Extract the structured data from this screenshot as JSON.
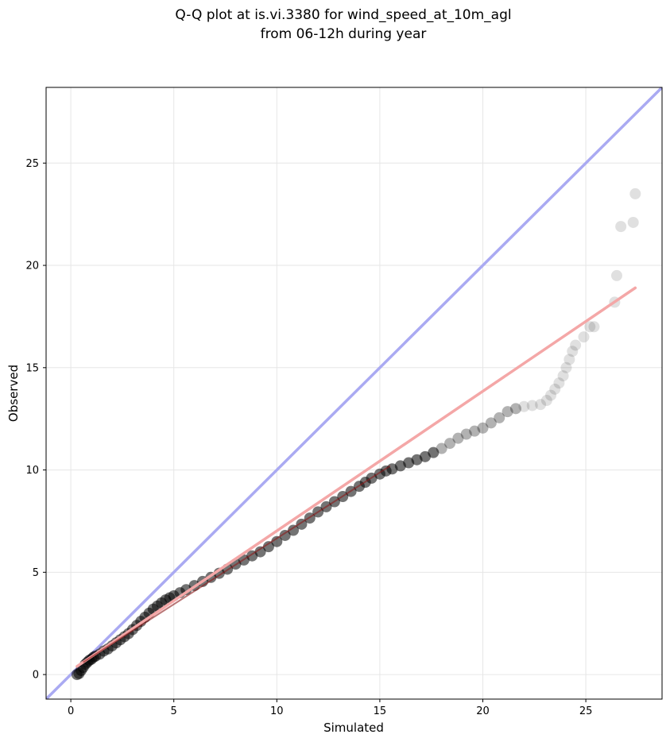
{
  "chart_data": {
    "type": "scatter",
    "title": [
      "Q-Q plot at is.vi.3380 for wind_speed_at_10m_agl",
      "from 06-12h during year"
    ],
    "xlabel": "Simulated",
    "ylabel": "Observed",
    "xlim": [
      -1.2,
      28.7
    ],
    "ylim": [
      -1.2,
      28.7
    ],
    "xticks": [
      0,
      5,
      10,
      15,
      20,
      25
    ],
    "yticks": [
      0,
      5,
      10,
      15,
      20,
      25
    ],
    "grid": true,
    "colors": {
      "identity_line": "#aaaaf2",
      "fit_line": "#f4a7a7",
      "points": "#000000",
      "grid": "#e6e6e6"
    },
    "reference_line": {
      "name": "1:1",
      "points": [
        [
          -1.2,
          -1.2
        ],
        [
          28.7,
          28.7
        ]
      ]
    },
    "fit_line": {
      "points": [
        [
          0.3,
          0.4
        ],
        [
          27.4,
          18.9
        ]
      ]
    },
    "points": [
      [
        0.3,
        0.0
      ],
      [
        0.4,
        0.05
      ],
      [
        0.5,
        0.2
      ],
      [
        0.6,
        0.35
      ],
      [
        0.7,
        0.5
      ],
      [
        0.8,
        0.6
      ],
      [
        0.9,
        0.7
      ],
      [
        1.0,
        0.75
      ],
      [
        1.1,
        0.85
      ],
      [
        1.2,
        0.9
      ],
      [
        1.4,
        1.0
      ],
      [
        1.6,
        1.15
      ],
      [
        1.8,
        1.25
      ],
      [
        2.0,
        1.4
      ],
      [
        2.2,
        1.55
      ],
      [
        2.4,
        1.7
      ],
      [
        2.6,
        1.85
      ],
      [
        2.8,
        2.0
      ],
      [
        3.0,
        2.2
      ],
      [
        3.2,
        2.4
      ],
      [
        3.4,
        2.6
      ],
      [
        3.6,
        2.8
      ],
      [
        3.8,
        3.0
      ],
      [
        4.0,
        3.2
      ],
      [
        4.2,
        3.35
      ],
      [
        4.4,
        3.5
      ],
      [
        4.6,
        3.65
      ],
      [
        4.8,
        3.75
      ],
      [
        5.0,
        3.85
      ],
      [
        5.3,
        4.0
      ],
      [
        5.6,
        4.15
      ],
      [
        6.0,
        4.35
      ],
      [
        6.4,
        4.55
      ],
      [
        6.8,
        4.75
      ],
      [
        7.2,
        4.95
      ],
      [
        7.6,
        5.15
      ],
      [
        8.0,
        5.4
      ],
      [
        8.4,
        5.6
      ],
      [
        8.8,
        5.8
      ],
      [
        9.2,
        6.0
      ],
      [
        9.6,
        6.25
      ],
      [
        10.0,
        6.5
      ],
      [
        10.4,
        6.8
      ],
      [
        10.8,
        7.05
      ],
      [
        11.2,
        7.35
      ],
      [
        11.6,
        7.65
      ],
      [
        12.0,
        7.95
      ],
      [
        12.4,
        8.2
      ],
      [
        12.8,
        8.45
      ],
      [
        13.2,
        8.7
      ],
      [
        13.6,
        8.95
      ],
      [
        14.0,
        9.2
      ],
      [
        14.3,
        9.4
      ],
      [
        14.6,
        9.6
      ],
      [
        15.0,
        9.8
      ],
      [
        15.3,
        9.95
      ],
      [
        15.6,
        10.05
      ],
      [
        16.0,
        10.2
      ],
      [
        16.4,
        10.35
      ],
      [
        16.8,
        10.5
      ],
      [
        17.2,
        10.65
      ],
      [
        17.6,
        10.85
      ],
      [
        18.0,
        11.05
      ],
      [
        18.4,
        11.3
      ],
      [
        18.8,
        11.55
      ],
      [
        19.2,
        11.75
      ],
      [
        19.6,
        11.9
      ],
      [
        20.0,
        12.05
      ],
      [
        20.4,
        12.3
      ],
      [
        20.8,
        12.55
      ],
      [
        21.2,
        12.85
      ],
      [
        21.6,
        13.0
      ],
      [
        22.0,
        13.1
      ],
      [
        22.4,
        13.15
      ],
      [
        22.8,
        13.2
      ],
      [
        23.1,
        13.4
      ],
      [
        23.3,
        13.65
      ],
      [
        23.5,
        13.95
      ],
      [
        23.7,
        14.25
      ],
      [
        23.9,
        14.6
      ],
      [
        24.05,
        15.0
      ],
      [
        24.2,
        15.4
      ],
      [
        24.35,
        15.8
      ],
      [
        24.5,
        16.1
      ],
      [
        24.9,
        16.5
      ],
      [
        25.2,
        17.0
      ],
      [
        25.4,
        17.0
      ],
      [
        26.4,
        18.2
      ],
      [
        26.5,
        19.5
      ],
      [
        26.7,
        21.9
      ],
      [
        27.3,
        22.1
      ],
      [
        27.4,
        23.5
      ]
    ]
  }
}
